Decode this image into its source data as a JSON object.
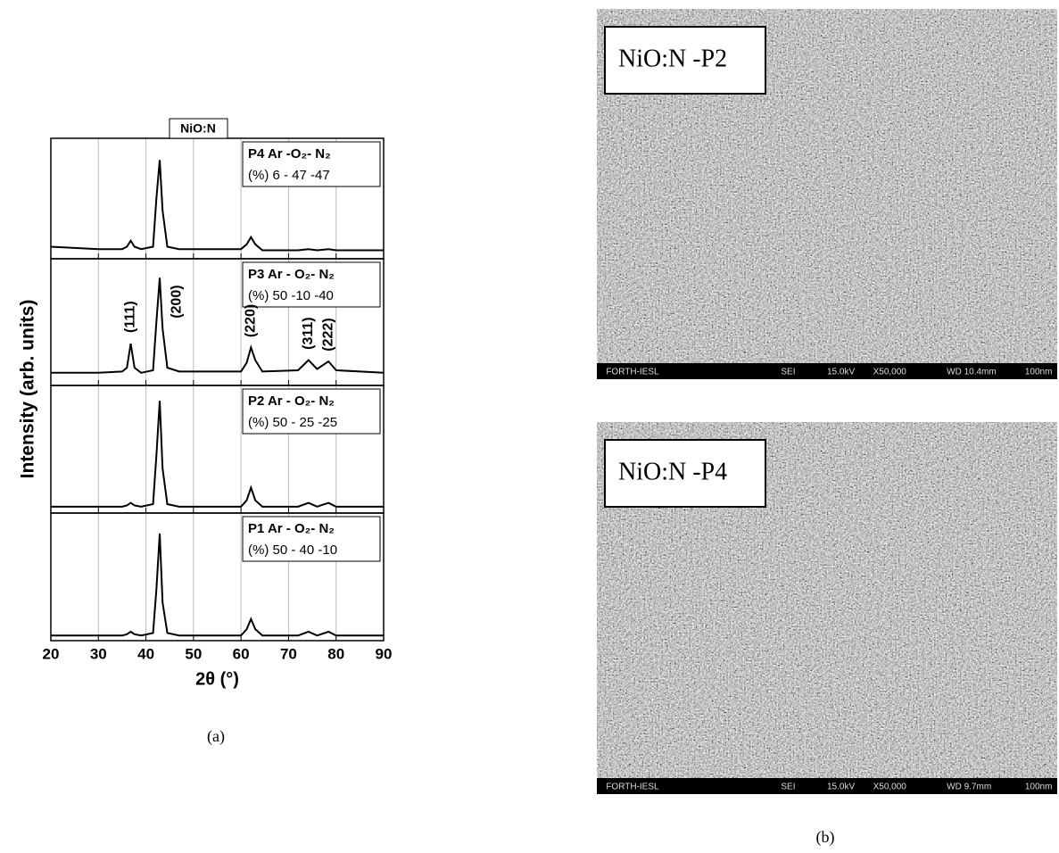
{
  "chart_data": [
    {
      "type": "line",
      "title": "NiO:N",
      "annotation": [
        "P4  Ar -O₂- N₂",
        "(%) 6 - 47 -47"
      ],
      "x": [
        20,
        30,
        35,
        36,
        36.8,
        37.6,
        39,
        41.5,
        42.2,
        42.9,
        43.5,
        44.5,
        47,
        53,
        60,
        61.2,
        62.1,
        63,
        64.5,
        72,
        74.2,
        76,
        78.4,
        80,
        90
      ],
      "series": [
        {
          "color": "#000000",
          "values": [
            0.1,
            0.08,
            0.08,
            0.1,
            0.15,
            0.1,
            0.08,
            0.1,
            0.5,
            0.82,
            0.4,
            0.1,
            0.08,
            0.08,
            0.08,
            0.12,
            0.18,
            0.12,
            0.07,
            0.07,
            0.08,
            0.07,
            0.08,
            0.07,
            0.07
          ]
        }
      ],
      "xlim": [
        20,
        90
      ],
      "ylim": [
        0,
        1
      ],
      "xticks": [
        20,
        30,
        40,
        50,
        60,
        70,
        80,
        90
      ],
      "grid": true
    },
    {
      "type": "line",
      "annotation": [
        "P3  Ar - O₂- N₂",
        "(%) 50 -10 -40"
      ],
      "peak_labels": [
        {
          "text": "(111)",
          "x": 36.8
        },
        {
          "text": "(200)",
          "x": 46.5
        },
        {
          "text": "(220)",
          "x": 62.1
        },
        {
          "text": "(311)",
          "x": 74.2
        },
        {
          "text": "(222)",
          "x": 78.4
        }
      ],
      "x": [
        20,
        30,
        35,
        36,
        36.8,
        37.6,
        39,
        41.5,
        42.2,
        42.9,
        43.5,
        44.5,
        47,
        53,
        60,
        61.2,
        62.1,
        63,
        64.5,
        72,
        74.2,
        76,
        78.4,
        80,
        90
      ],
      "series": [
        {
          "color": "#000000",
          "values": [
            0.1,
            0.1,
            0.11,
            0.14,
            0.33,
            0.14,
            0.1,
            0.12,
            0.5,
            0.85,
            0.45,
            0.14,
            0.11,
            0.11,
            0.11,
            0.18,
            0.3,
            0.2,
            0.11,
            0.12,
            0.2,
            0.13,
            0.19,
            0.12,
            0.1
          ]
        }
      ],
      "xlim": [
        20,
        90
      ],
      "ylim": [
        0,
        1
      ],
      "xticks": [
        20,
        30,
        40,
        50,
        60,
        70,
        80,
        90
      ],
      "grid": true
    },
    {
      "type": "line",
      "annotation": [
        "P2  Ar - O₂-  N₂",
        "(%) 50 - 25 -25"
      ],
      "x": [
        20,
        30,
        35,
        36,
        36.8,
        37.6,
        39,
        41.5,
        42.2,
        42.9,
        43.5,
        44.5,
        47,
        53,
        60,
        61.2,
        62.1,
        63,
        64.5,
        72,
        74.2,
        76,
        78.4,
        80,
        90
      ],
      "series": [
        {
          "color": "#000000",
          "values": [
            0.05,
            0.05,
            0.05,
            0.06,
            0.08,
            0.06,
            0.05,
            0.07,
            0.45,
            0.88,
            0.35,
            0.07,
            0.05,
            0.05,
            0.05,
            0.1,
            0.2,
            0.1,
            0.05,
            0.05,
            0.08,
            0.05,
            0.08,
            0.05,
            0.05
          ]
        }
      ],
      "xlim": [
        20,
        90
      ],
      "ylim": [
        0,
        1
      ],
      "xticks": [
        20,
        30,
        40,
        50,
        60,
        70,
        80,
        90
      ],
      "grid": true
    },
    {
      "type": "line",
      "annotation": [
        "P1  Ar - O₂-  N₂",
        "(%) 50 - 40 -10"
      ],
      "xlabel": "2θ (°)",
      "x": [
        20,
        30,
        35,
        36,
        36.8,
        37.6,
        39,
        41.5,
        42.2,
        42.9,
        43.5,
        44.5,
        47,
        53,
        60,
        61.2,
        62.1,
        63,
        64.5,
        72,
        74.2,
        76,
        78.4,
        80,
        90
      ],
      "series": [
        {
          "color": "#000000",
          "values": [
            0.04,
            0.04,
            0.04,
            0.05,
            0.07,
            0.05,
            0.04,
            0.06,
            0.4,
            0.84,
            0.3,
            0.06,
            0.04,
            0.04,
            0.04,
            0.09,
            0.17,
            0.09,
            0.04,
            0.04,
            0.07,
            0.04,
            0.07,
            0.04,
            0.04
          ]
        }
      ],
      "xlim": [
        20,
        90
      ],
      "ylim": [
        0,
        1
      ],
      "xticks": [
        20,
        30,
        40,
        50,
        60,
        70,
        80,
        90
      ],
      "grid": true
    }
  ],
  "figure": {
    "ylabel": "Intensity (arb. units)",
    "caption_a": "(a)",
    "caption_b": "(b)"
  },
  "images": [
    {
      "label": "NiO:N -P2",
      "footer": [
        "FORTH-IESL",
        "SEI",
        "15.0kV",
        "X50,000",
        "WD 10.4mm",
        "100nm"
      ]
    },
    {
      "label": "NiO:N -P4",
      "footer": [
        "FORTH-IESL",
        "SEI",
        "15.0kV",
        "X50,000",
        "WD 9.7mm",
        "100nm"
      ]
    }
  ]
}
